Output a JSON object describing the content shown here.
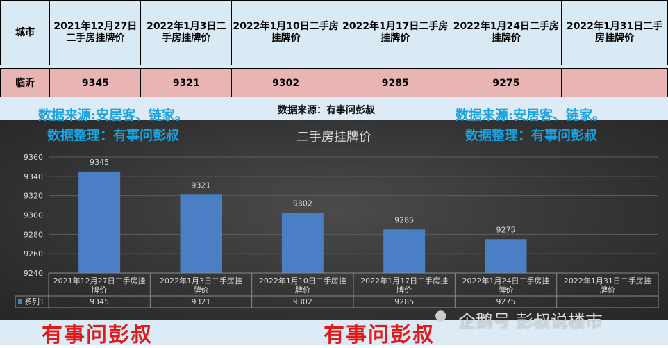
{
  "table": {
    "city_header": "城市",
    "date_headers": [
      "2021年12月27日二手房挂牌价",
      "2022年1月3日二手房挂牌价",
      "2022年1月10日二手房挂牌价",
      "2022年1月17日二手房挂牌价",
      "2022年1月24日二手房挂牌价",
      "2022年1月31日二手房挂牌价"
    ],
    "city": "临沂",
    "values": [
      "9345",
      "9321",
      "9302",
      "9285",
      "9275",
      ""
    ]
  },
  "source_center": "数据来源：有事问彭叔",
  "watermark_source": "数据来源:安居客、链家。",
  "watermark_curator": "数据整理：有事问彭叔",
  "watermark_red": "有事问彭叔",
  "watermark_brand": "企鹅号 彭叔说楼市",
  "chart_data": {
    "type": "bar",
    "title": "二手房挂牌价",
    "categories": [
      "2021年12月27日二手房挂牌价",
      "2022年1月3日二手房挂牌价",
      "2022年1月10日二手房挂牌价",
      "2022年1月17日二手房挂牌价",
      "2022年1月24日二手房挂牌价",
      "2022年1月31日二手房挂牌价"
    ],
    "series": [
      {
        "name": "系列1",
        "values": [
          9345,
          9321,
          9302,
          9285,
          9275,
          null
        ]
      }
    ],
    "ylim": [
      9240,
      9360
    ],
    "yticks": [
      9240,
      9260,
      9280,
      9300,
      9320,
      9340,
      9360
    ],
    "grid": true,
    "data_table": true,
    "colors": {
      "bar": "#4a7fc6",
      "background": "#333333",
      "text": "#d9d9d9"
    }
  }
}
